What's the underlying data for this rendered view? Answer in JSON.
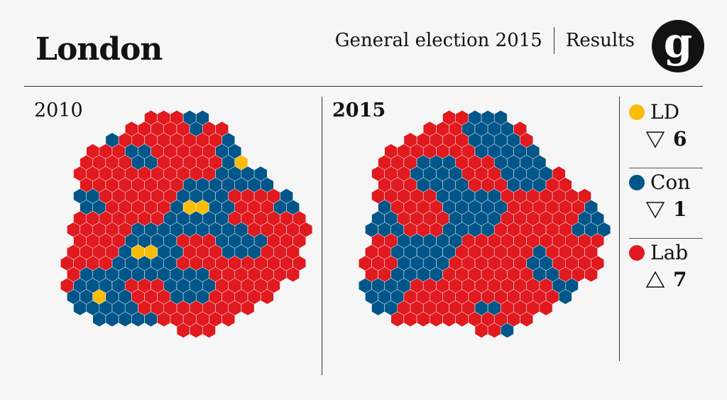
{
  "header": {
    "title": "London",
    "subtitle": "General election 2015",
    "subtitle_right": "Results",
    "logo_glyph": "g"
  },
  "maps": [
    {
      "year": "2010",
      "shares": {
        "Lab": 0.52,
        "Con": 0.38,
        "LD": 0.1
      }
    },
    {
      "year": "2015",
      "shares": {
        "Lab": 0.58,
        "Con": 0.4,
        "LD": 0.02
      }
    }
  ],
  "legend": [
    {
      "party": "LD",
      "color": "#fbbc05",
      "direction": "down",
      "change": "6"
    },
    {
      "party": "Con",
      "color": "#005689",
      "direction": "down",
      "change": "1"
    },
    {
      "party": "Lab",
      "color": "#e01a1f",
      "direction": "up",
      "change": "7"
    }
  ],
  "colors": {
    "Lab": "#e01a1f",
    "Con": "#005689",
    "LD": "#fbbc05",
    "background": "#f6f6f6"
  }
}
